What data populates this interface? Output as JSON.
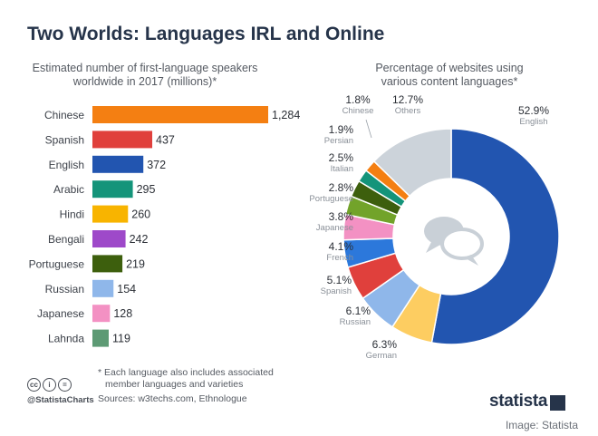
{
  "title": "Two Worlds: Languages IRL and Online",
  "credit": "Image: Statista",
  "footnote": [
    "* Each language also includes associated",
    "member languages and varieties"
  ],
  "sources": "Sources: w3techs.com, Ethnologue",
  "handle": "@StatistaCharts",
  "logo": "statista",
  "cc_icons": [
    "cc",
    "i",
    "="
  ],
  "chart_data": [
    {
      "type": "bar",
      "orientation": "horizontal",
      "subtitle": [
        "Estimated number of first-language speakers",
        "worldwide in 2017 (millions)*"
      ],
      "categories": [
        "Chinese",
        "Spanish",
        "English",
        "Arabic",
        "Hindi",
        "Bengali",
        "Portuguese",
        "Russian",
        "Japanese",
        "Lahnda"
      ],
      "values": [
        1284,
        437,
        372,
        295,
        260,
        242,
        219,
        154,
        128,
        119
      ],
      "value_labels": [
        "1,284",
        "437",
        "372",
        "295",
        "260",
        "242",
        "219",
        "154",
        "128",
        "119"
      ],
      "colors": [
        "#f47f12",
        "#e0403c",
        "#2255b0",
        "#14947a",
        "#f8b400",
        "#9e49c9",
        "#3d5f0d",
        "#8fb7ea",
        "#f391c3",
        "#5d9a74"
      ]
    },
    {
      "type": "pie",
      "donut": true,
      "subtitle": [
        "Percentage of websites using",
        "various content languages*"
      ],
      "slices": [
        {
          "label": "English",
          "value": 52.9,
          "value_label": "52.9%",
          "color": "#2255b0"
        },
        {
          "label": "German",
          "value": 6.3,
          "value_label": "6.3%",
          "color": "#fdcd61"
        },
        {
          "label": "Russian",
          "value": 6.1,
          "value_label": "6.1%",
          "color": "#8fb7ea"
        },
        {
          "label": "Spanish",
          "value": 5.1,
          "value_label": "5.1%",
          "color": "#e0403c"
        },
        {
          "label": "French",
          "value": 4.1,
          "value_label": "4.1%",
          "color": "#2c78db"
        },
        {
          "label": "Japanese",
          "value": 3.8,
          "value_label": "3.8%",
          "color": "#f391c3"
        },
        {
          "label": "Portuguese",
          "value": 2.8,
          "value_label": "2.8%",
          "color": "#72a32a"
        },
        {
          "label": "Italian",
          "value": 2.5,
          "value_label": "2.5%",
          "color": "#3d5f0d"
        },
        {
          "label": "Persian",
          "value": 1.9,
          "value_label": "1.9%",
          "color": "#14947a"
        },
        {
          "label": "Chinese",
          "value": 1.8,
          "value_label": "1.8%",
          "color": "#f47f12"
        },
        {
          "label": "Others",
          "value": 12.7,
          "value_label": "12.7%",
          "color": "#ccd3da"
        }
      ],
      "center_icon": "speech-bubbles-icon"
    }
  ]
}
